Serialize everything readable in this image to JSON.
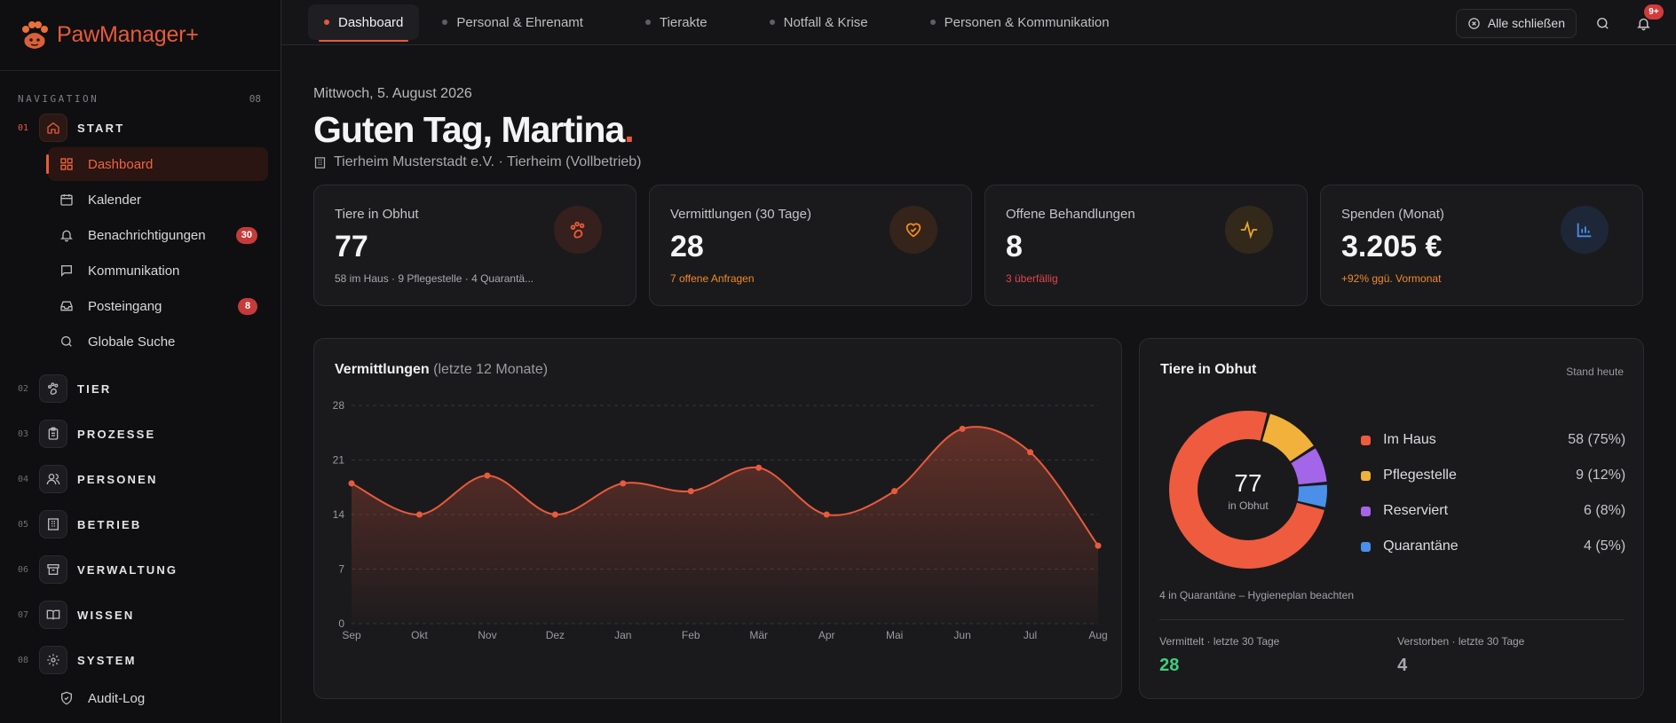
{
  "app": {
    "name": "PawManager+"
  },
  "nav": {
    "heading": "NAVIGATION",
    "count": "08",
    "groups": [
      {
        "num": "01",
        "label": "START",
        "icon": "home-icon"
      },
      {
        "num": "02",
        "label": "TIER",
        "icon": "paw-icon"
      },
      {
        "num": "03",
        "label": "PROZESSE",
        "icon": "clipboard-icon"
      },
      {
        "num": "04",
        "label": "PERSONEN",
        "icon": "users-icon"
      },
      {
        "num": "05",
        "label": "BETRIEB",
        "icon": "building-icon"
      },
      {
        "num": "06",
        "label": "VERWALTUNG",
        "icon": "archive-icon"
      },
      {
        "num": "07",
        "label": "WISSEN",
        "icon": "book-icon"
      },
      {
        "num": "08",
        "label": "SYSTEM",
        "icon": "gear-icon"
      }
    ],
    "start_items": [
      {
        "label": "Dashboard",
        "icon": "grid-icon"
      },
      {
        "label": "Kalender",
        "icon": "calendar-icon"
      },
      {
        "label": "Benachrichtigungen",
        "icon": "bell-icon",
        "badge": "30"
      },
      {
        "label": "Kommunikation",
        "icon": "chat-icon"
      },
      {
        "label": "Posteingang",
        "icon": "inbox-icon",
        "badge": "8"
      },
      {
        "label": "Globale Suche",
        "icon": "search-icon"
      }
    ],
    "system_items": [
      {
        "label": "Audit-Log",
        "icon": "shield-icon"
      }
    ]
  },
  "tabs": [
    {
      "label": "Dashboard"
    },
    {
      "label": "Personal & Ehrenamt"
    },
    {
      "label": "Tierakte"
    },
    {
      "label": "Notfall & Krise"
    },
    {
      "label": "Personen & Kommunikation"
    }
  ],
  "topbar": {
    "close_all": "Alle schließen",
    "notif_badge": "9+"
  },
  "header": {
    "date": "Mittwoch, 5. August 2026",
    "greeting": "Guten Tag, Martina",
    "greeting_dot": ".",
    "org": "Tierheim Musterstadt e.V. · Tierheim (Vollbetrieb)"
  },
  "kpis": [
    {
      "label": "Tiere in Obhut",
      "value": "77",
      "sub": "58 im Haus · 9 Pflegestelle · 4 Quarantä...",
      "sub_color": "#a8a8ae",
      "icon": "paw-icon",
      "icon_bg": "#35201d",
      "icon_color": "#e85a3c"
    },
    {
      "label": "Vermittlungen (30 Tage)",
      "value": "28",
      "sub": "7 offene Anfragen",
      "sub_color": "#f08a24",
      "icon": "heart-handshake-icon",
      "icon_bg": "#35241a",
      "icon_color": "#f08a24"
    },
    {
      "label": "Offene Behandlungen",
      "value": "8",
      "sub": "3 überfällig",
      "sub_color": "#e0454b",
      "icon": "pulse-icon",
      "icon_bg": "#33291a",
      "icon_color": "#e7a52b"
    },
    {
      "label": "Spenden (Monat)",
      "value": "3.205 €",
      "sub": "+92% ggü. Vormonat",
      "sub_color": "#f08a24",
      "icon": "bar-chart-icon",
      "icon_bg": "#1d2738",
      "icon_color": "#4d8de8"
    }
  ],
  "chart_data": {
    "type": "area",
    "title": "Vermittlungen",
    "subtitle": "(letzte 12 Monate)",
    "categories": [
      "Sep",
      "Okt",
      "Nov",
      "Dez",
      "Jan",
      "Feb",
      "Mär",
      "Apr",
      "Mai",
      "Jun",
      "Jul",
      "Aug"
    ],
    "values": [
      18,
      14,
      19,
      14,
      18,
      17,
      20,
      14,
      17,
      25,
      22,
      10
    ],
    "ylim": [
      0,
      28
    ],
    "yticks": [
      "0",
      "7",
      "14",
      "21",
      "28"
    ],
    "grid": true,
    "color": "#e85a3c"
  },
  "donut": {
    "title": "Tiere in Obhut",
    "stand": "Stand heute",
    "total": "77",
    "total_label": "in Obhut",
    "segments": [
      {
        "name": "Im Haus",
        "value": 58,
        "display": "58 (75%)",
        "color": "#ef5b3e"
      },
      {
        "name": "Pflegestelle",
        "value": 9,
        "display": "9 (12%)",
        "color": "#f1b13a"
      },
      {
        "name": "Reserviert",
        "value": 6,
        "display": "6 (8%)",
        "color": "#a466e8"
      },
      {
        "name": "Quarantäne",
        "value": 4,
        "display": "4 (5%)",
        "color": "#4a90e8"
      }
    ],
    "hint": "4 in Quarantäne – Hygieneplan beachten",
    "stats": [
      {
        "label": "Vermittelt · letzte 30 Tage",
        "value": "28",
        "color": "#3ecf7e"
      },
      {
        "label": "Verstorben · letzte 30 Tage",
        "value": "4",
        "color": "#a8a8ae"
      }
    ]
  }
}
